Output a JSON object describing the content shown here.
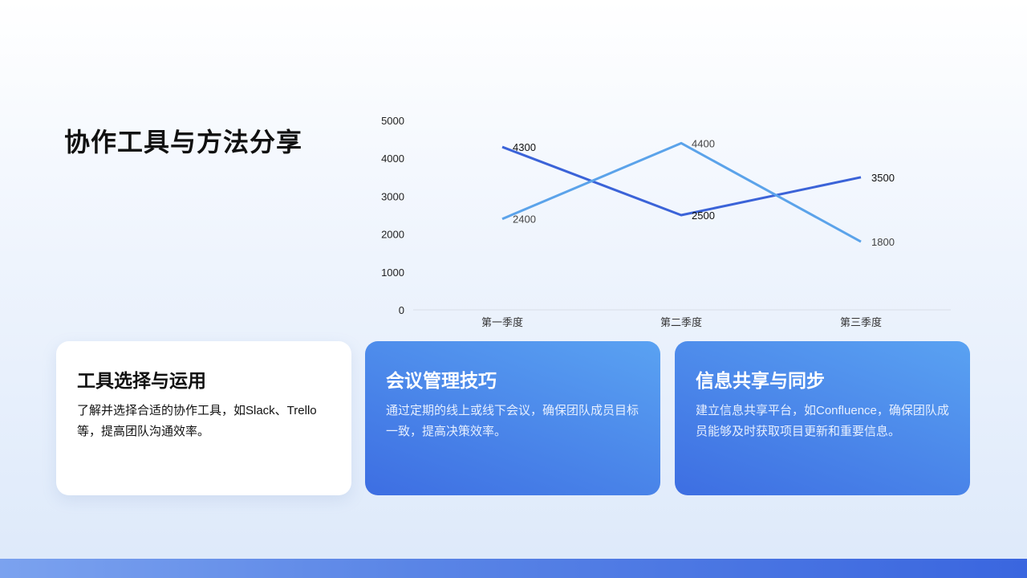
{
  "slide": {
    "title": "协作工具与方法分享"
  },
  "chart_data": {
    "type": "line",
    "categories": [
      "第一季度",
      "第二季度",
      "第三季度"
    ],
    "series": [
      {
        "values": [
          4300,
          2500,
          3500
        ],
        "color": "#3b63d8"
      },
      {
        "values": [
          2400,
          4400,
          1800
        ],
        "color": "#5ba3ea"
      }
    ],
    "ylim": [
      0,
      5000
    ],
    "yticks": [
      0,
      1000,
      2000,
      3000,
      4000,
      5000
    ],
    "grid": false,
    "data_labels": true
  },
  "cards": [
    {
      "title": "工具选择与运用",
      "text": "了解并选择合适的协作工具，如Slack、Trello等，提高团队沟通效率。"
    },
    {
      "title": "会议管理技巧",
      "text": "通过定期的线上或线下会议，确保团队成员目标一致，提高决策效率。"
    },
    {
      "title": "信息共享与同步",
      "text": "建立信息共享平台，如Confluence，确保团队成员能够及时获取项目更新和重要信息。"
    }
  ],
  "colors": {
    "accent": "#3d6ee2",
    "accent_light": "#5aa2f2"
  }
}
